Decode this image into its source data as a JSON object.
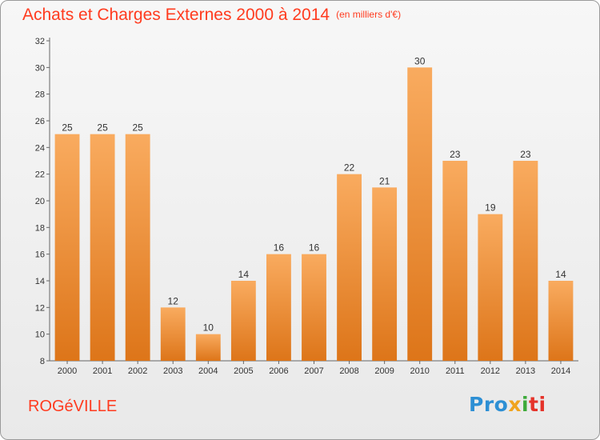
{
  "header": {
    "title": "Achats et Charges Externes 2000 à 2014",
    "unit": "(en milliers d'€)"
  },
  "commune": "ROGéVILLE",
  "logo": {
    "parts": [
      "Pro",
      "x",
      "i",
      "ti"
    ]
  },
  "colors": {
    "title": "#ff3b1f",
    "bar_light": "#f7a85a",
    "bar_dark": "#e07a1c"
  },
  "chart_data": {
    "type": "bar",
    "categories": [
      "2000",
      "2001",
      "2002",
      "2003",
      "2004",
      "2005",
      "2006",
      "2007",
      "2008",
      "2009",
      "2010",
      "2011",
      "2012",
      "2013",
      "2014"
    ],
    "values": [
      25,
      25,
      25,
      12,
      10,
      14,
      16,
      16,
      22,
      21,
      30,
      23,
      19,
      23,
      14
    ],
    "ylim": [
      8,
      32
    ],
    "yticks": [
      8,
      10,
      12,
      14,
      16,
      18,
      20,
      22,
      24,
      26,
      28,
      30,
      32
    ],
    "grid": false,
    "data_labels": true
  }
}
